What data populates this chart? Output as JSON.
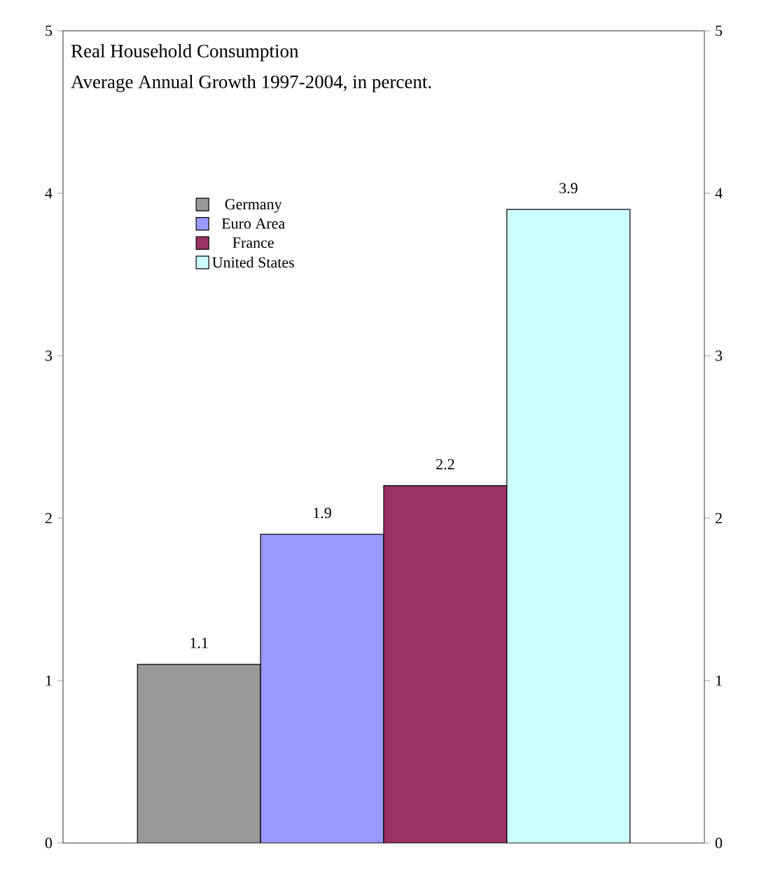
{
  "chart_data": {
    "type": "bar",
    "title": "Real Household Consumption",
    "subtitle": "Average Annual Growth 1997-2004, in percent.",
    "categories": [
      null
    ],
    "series": [
      {
        "name": "Germany",
        "color": "#999999",
        "values": [
          1.1
        ]
      },
      {
        "name": "Euro Area",
        "color": "#9999ff",
        "values": [
          1.9
        ]
      },
      {
        "name": "France",
        "color": "#993366",
        "values": [
          2.2
        ]
      },
      {
        "name": "United States",
        "color": "#ccffff",
        "values": [
          3.9
        ]
      }
    ],
    "ylim": [
      0,
      5
    ],
    "yticks": [
      0,
      1,
      2,
      3,
      4,
      5
    ],
    "y2lim": [
      0,
      5
    ],
    "y2ticks": [
      0,
      1,
      2,
      3,
      4,
      5
    ],
    "data_labels": true,
    "legend": "top left",
    "grid": false
  }
}
